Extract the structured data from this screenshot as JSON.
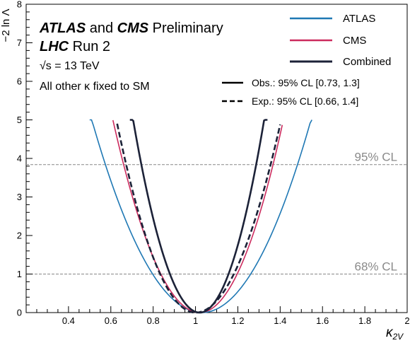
{
  "chart_data": {
    "type": "line",
    "title_lines": [
      {
        "bold": "ATLAS",
        "rest": " and "
      },
      {
        "bold": "CMS",
        "rest": " Preliminary"
      }
    ],
    "title_line1_bold1": "ATLAS",
    "title_line1_mid": " and ",
    "title_line1_bold2": "CMS",
    "title_line1_tail": " Preliminary",
    "title_line2_bold": "LHC",
    "title_line2_tail": " Run 2",
    "energy_label": "√s = 13 TeV",
    "assumption_label": "All other κ fixed to SM",
    "xlabel": "κ2V",
    "xlabel_main": "κ",
    "xlabel_sub": "2V",
    "ylabel": "−2 ln Λ",
    "xlim": [
      0.2,
      2.0
    ],
    "ylim": [
      0,
      8
    ],
    "xticks": [
      "0.4",
      "0.6",
      "0.8",
      "1",
      "1.2",
      "1.4",
      "1.6",
      "1.8",
      "2"
    ],
    "yticks": [
      "0",
      "1",
      "2",
      "3",
      "4",
      "5",
      "6",
      "7",
      "8"
    ],
    "grid": false,
    "legend_position": "top-right",
    "legend": [
      {
        "label": "ATLAS",
        "color": "#1f78b4"
      },
      {
        "label": "CMS",
        "color": "#cc2b5e"
      },
      {
        "label": "Combined",
        "color": "#1c2238"
      }
    ],
    "style_legend": [
      {
        "label": "Obs.: 95% CL [0.73, 1.3]",
        "style": "solid"
      },
      {
        "label": "Exp.: 95% CL [0.66, 1.4]",
        "style": "dashed"
      }
    ],
    "reference_lines": [
      {
        "y": 3.84,
        "label": "95% CL"
      },
      {
        "y": 1.0,
        "label": "68% CL"
      }
    ],
    "series": [
      {
        "name": "ATLAS",
        "color": "#1f78b4",
        "style": "solid",
        "min_x": 1.03,
        "left_x": [
          0.5,
          1.0
        ],
        "right_x": [
          1.55,
          1.0
        ],
        "curvature": [
          18.5,
          18.8
        ]
      },
      {
        "name": "CMS",
        "color": "#cc2b5e",
        "style": "solid",
        "min_x": 1.02,
        "left_x": [
          0.61,
          1.0
        ],
        "right_x": [
          1.41,
          1.0
        ],
        "curvature": [
          29.7,
          32.0
        ]
      },
      {
        "name": "Combined",
        "color": "#1c2238",
        "style": "solid",
        "min_x": 1.02,
        "left_x": [
          0.69,
          1.0
        ],
        "right_x": [
          1.34,
          1.0
        ],
        "curvature": [
          50.5,
          54.0
        ]
      },
      {
        "name": "Combined",
        "color": "#1c2238",
        "style": "dashed",
        "min_x": 1.0,
        "left_x": [
          0.63,
          1.0
        ],
        "right_x": [
          1.4,
          1.0
        ],
        "curvature": [
          35.8,
          30.5
        ]
      }
    ]
  }
}
